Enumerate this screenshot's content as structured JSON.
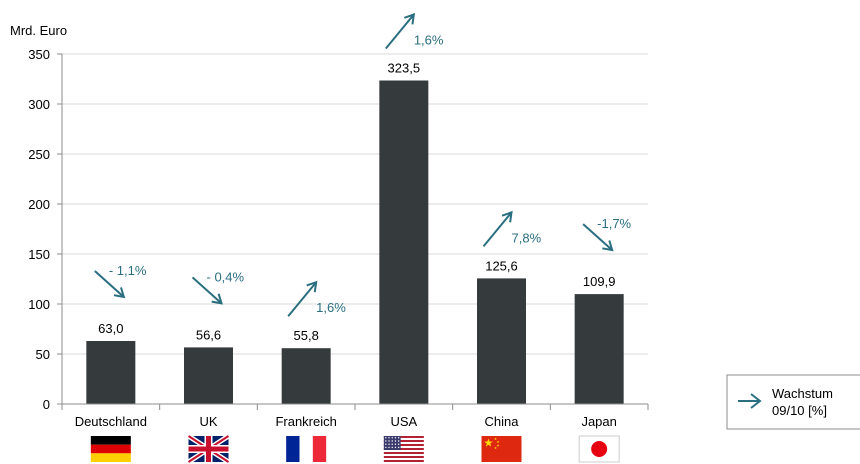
{
  "chart_data": {
    "type": "bar",
    "ylabel": "Mrd. Euro",
    "ylim": [
      0,
      350
    ],
    "yticks": [
      0,
      50,
      100,
      150,
      200,
      250,
      300,
      350
    ],
    "grid": true,
    "categories": [
      "Deutschland",
      "UK",
      "Frankreich",
      "USA",
      "China",
      "Japan"
    ],
    "values": [
      63.0,
      56.6,
      55.8,
      323.5,
      125.6,
      109.9
    ],
    "value_labels": [
      "63,0",
      "56,6",
      "55,8",
      "323,5",
      "125,6",
      "109,9"
    ],
    "growth": [
      {
        "label": "- 1,1%",
        "direction": "down"
      },
      {
        "label": "- 0,4%",
        "direction": "down"
      },
      {
        "label": "1,6%",
        "direction": "up"
      },
      {
        "label": "1,6%",
        "direction": "up"
      },
      {
        "label": "7,8%",
        "direction": "up"
      },
      {
        "label": "-1,7%",
        "direction": "down"
      }
    ],
    "flags": [
      "germany-flag",
      "uk-flag",
      "france-flag",
      "usa-flag",
      "china-flag",
      "japan-flag"
    ],
    "legend": {
      "line1": "Wachstum",
      "line2": "09/10 [%]",
      "position": "bottom-right"
    },
    "colors": {
      "bar": "#353a3c",
      "arrow": "#2a6f80",
      "grid": "#d9d9d9",
      "axis": "#8c8c8c",
      "text": "#000000"
    }
  }
}
